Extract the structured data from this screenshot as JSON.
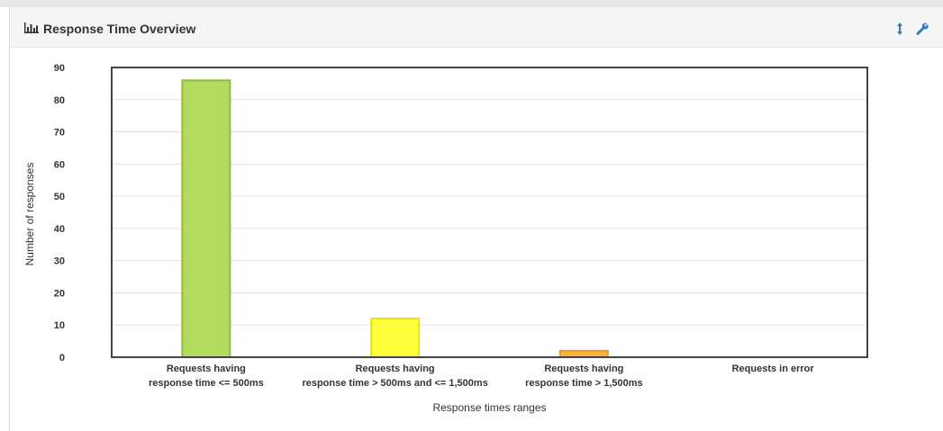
{
  "panel": {
    "title": "Response Time Overview",
    "icons": [
      "bar-chart-icon",
      "resize-vertical-icon",
      "wrench-icon"
    ],
    "accent_color": "#337ab7"
  },
  "chart_data": {
    "type": "bar",
    "title": "",
    "xlabel": "Response times ranges",
    "ylabel": "Number of responses",
    "ylim": [
      0,
      90
    ],
    "yticks": [
      0,
      10,
      20,
      30,
      40,
      50,
      60,
      70,
      80,
      90
    ],
    "grid": true,
    "categories": [
      [
        "Requests having",
        "response time <= 500ms"
      ],
      [
        "Requests having",
        "response time > 500ms and <= 1,500ms"
      ],
      [
        "Requests having",
        "response time > 1,500ms"
      ],
      [
        "Requests in error"
      ]
    ],
    "values": [
      86,
      12,
      2,
      0
    ],
    "colors": [
      {
        "fill": "#b3dc5f",
        "stroke": "#8cbd3c"
      },
      {
        "fill": "#ffff3c",
        "stroke": "#e6e600"
      },
      {
        "fill": "#f8b33b",
        "stroke": "#e89a1c"
      },
      {
        "fill": "#ff5a5a",
        "stroke": "#e03c3c"
      }
    ]
  }
}
